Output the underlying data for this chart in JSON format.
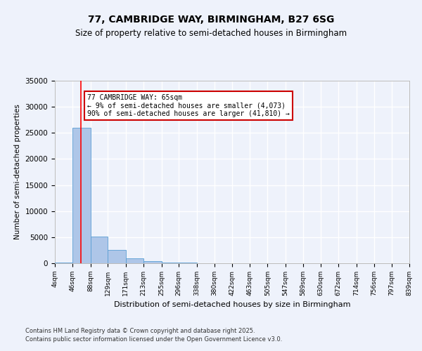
{
  "title_line1": "77, CAMBRIDGE WAY, BIRMINGHAM, B27 6SG",
  "title_line2": "Size of property relative to semi-detached houses in Birmingham",
  "xlabel": "Distribution of semi-detached houses by size in Birmingham",
  "ylabel": "Number of semi-detached properties",
  "footer": "Contains HM Land Registry data © Crown copyright and database right 2025.\nContains public sector information licensed under the Open Government Licence v3.0.",
  "annotation_title": "77 CAMBRIDGE WAY: 65sqm",
  "annotation_line1": "← 9% of semi-detached houses are smaller (4,073)",
  "annotation_line2": "90% of semi-detached houses are larger (41,810) →",
  "bin_labels": [
    "4sqm",
    "46sqm",
    "88sqm",
    "129sqm",
    "171sqm",
    "213sqm",
    "255sqm",
    "296sqm",
    "338sqm",
    "380sqm",
    "422sqm",
    "463sqm",
    "505sqm",
    "547sqm",
    "589sqm",
    "630sqm",
    "672sqm",
    "714sqm",
    "756sqm",
    "797sqm",
    "839sqm"
  ],
  "bar_values": [
    200,
    26000,
    5100,
    2500,
    1000,
    450,
    170,
    100,
    50,
    20,
    10,
    5,
    3,
    2,
    1,
    0,
    0,
    0,
    0,
    0,
    0
  ],
  "bar_color": "#aec6e8",
  "bar_edge_color": "#5a9fd4",
  "property_line_x": 65,
  "bin_edges": [
    4,
    46,
    88,
    129,
    171,
    213,
    255,
    296,
    338,
    380,
    422,
    463,
    505,
    547,
    589,
    630,
    672,
    714,
    756,
    797,
    839
  ],
  "ylim": [
    0,
    35000
  ],
  "yticks": [
    0,
    5000,
    10000,
    15000,
    20000,
    25000,
    30000,
    35000
  ],
  "bg_color": "#eef2fb",
  "grid_color": "#ffffff",
  "annotation_box_color": "#ffffff",
  "annotation_box_edge": "#cc0000",
  "title_fontsize": 10,
  "subtitle_fontsize": 8.5
}
